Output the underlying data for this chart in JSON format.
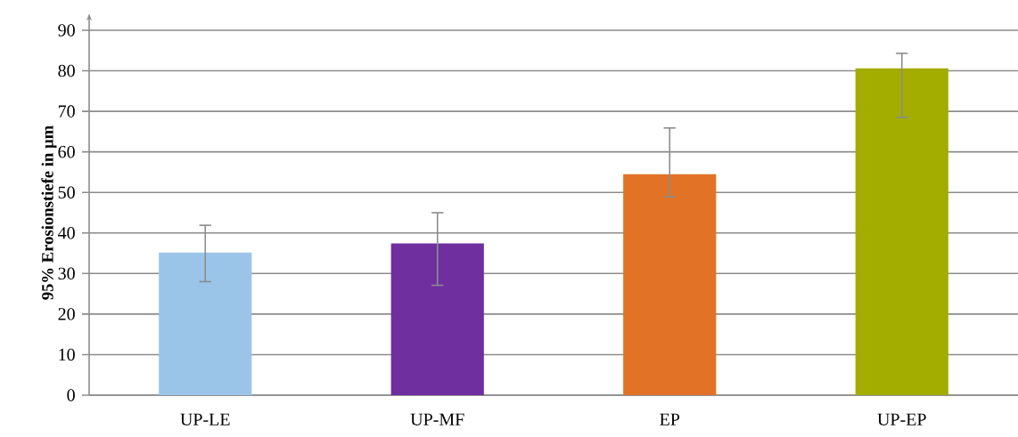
{
  "chart_data": {
    "type": "bar",
    "ylabel": "95% Erosionstiefe  in µm",
    "categories": [
      "UP-LE",
      "UP-MF",
      "EP",
      "UP-EP"
    ],
    "values": [
      35.2,
      37.4,
      54.5,
      80.6
    ],
    "colors": [
      "#9bc5e8",
      "#6f2f9f",
      "#e27326",
      "#a3ad00"
    ],
    "errors": [
      [
        28.0,
        41.9
      ],
      [
        27.1,
        45.0
      ],
      [
        48.9,
        65.9
      ],
      [
        68.5,
        84.3
      ]
    ],
    "ylim": [
      0,
      90
    ],
    "yticks": [
      0,
      10,
      20,
      30,
      40,
      50,
      60,
      70,
      80,
      90
    ],
    "grid": "y"
  }
}
